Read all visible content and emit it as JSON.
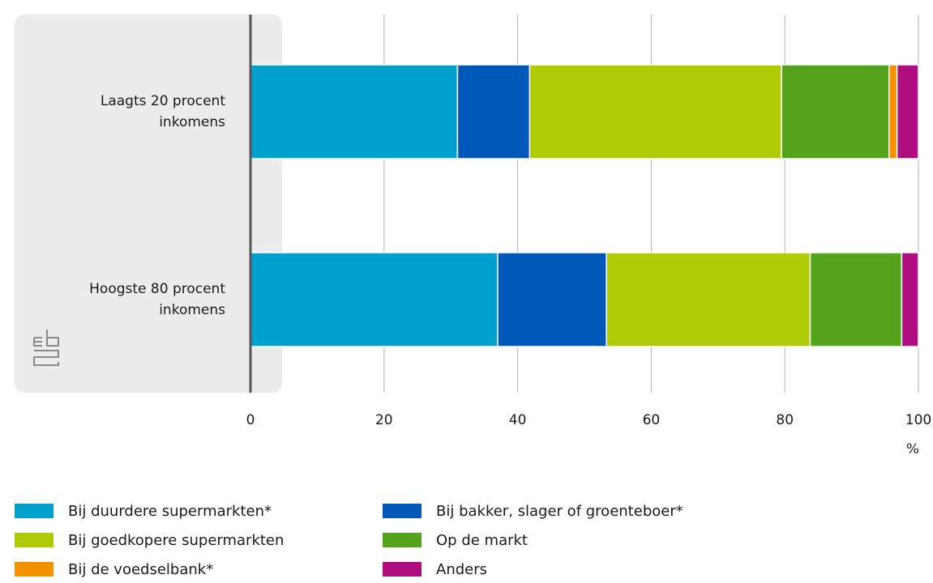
{
  "chart_data": {
    "type": "bar",
    "orientation": "horizontal",
    "stacked": true,
    "categories": [
      "Laagts 20 procent inkomens",
      "Hoogste 80 procent inkomens"
    ],
    "category_lines": [
      [
        "Laagts 20 procent",
        "inkomens"
      ],
      [
        "Hoogste 80 procent",
        "inkomens"
      ]
    ],
    "series": [
      {
        "name": "Bij duurdere supermarkten*",
        "color": "#00a1cd",
        "values": [
          31,
          37
        ]
      },
      {
        "name": "Bij bakker, slager of groenteboer*",
        "color": "#0058b8",
        "values": [
          10.8,
          16.3
        ]
      },
      {
        "name": "Bij goedkopere supermarkten",
        "color": "#afcb05",
        "values": [
          37.7,
          30.5
        ]
      },
      {
        "name": "Op de markt",
        "color": "#53a31d",
        "values": [
          16.1,
          13.7
        ]
      },
      {
        "name": "Bij de voedselbank*",
        "color": "#f39200",
        "values": [
          1.2,
          0
        ]
      },
      {
        "name": "Anders",
        "color": "#af0e80",
        "values": [
          3.2,
          2.5
        ]
      }
    ],
    "xlim": [
      0,
      100
    ],
    "xticks": [
      "0",
      "20",
      "40",
      "60",
      "80",
      "100"
    ],
    "xunit": "%",
    "grid": true,
    "legend_position": "bottom"
  },
  "legend_order": [
    0,
    1,
    2,
    3,
    4,
    5
  ],
  "logo": "cbs"
}
